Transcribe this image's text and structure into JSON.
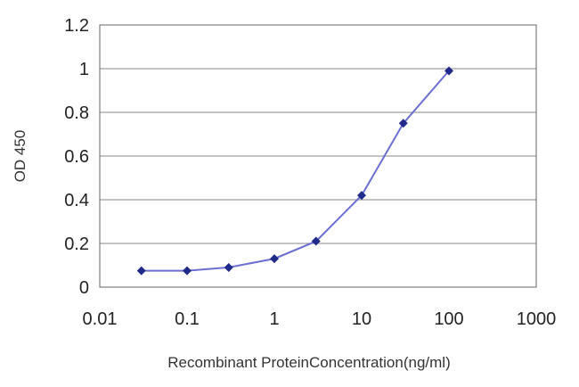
{
  "chart_data": {
    "type": "line",
    "title": "",
    "xlabel": "Recombinant ProteinConcentration(ng/ml)",
    "ylabel": "OD 450",
    "x_scale": "log",
    "xlim": [
      0.01,
      1000
    ],
    "ylim": [
      0,
      1.2
    ],
    "x_ticks": [
      "0.01",
      "0.1",
      "1",
      "10",
      "100",
      "1000"
    ],
    "y_ticks": [
      "0",
      "0.2",
      "0.4",
      "0.6",
      "0.8",
      "1",
      "1.2"
    ],
    "grid": "horizontal",
    "legend": "none",
    "series": [
      {
        "x": [
          0.03,
          0.1,
          0.3,
          1,
          3,
          10,
          30,
          100
        ],
        "y": [
          0.075,
          0.075,
          0.09,
          0.13,
          0.21,
          0.42,
          0.75,
          0.99
        ],
        "color": "#6b6fd1",
        "marker_color": "#1f2a8a"
      }
    ]
  }
}
